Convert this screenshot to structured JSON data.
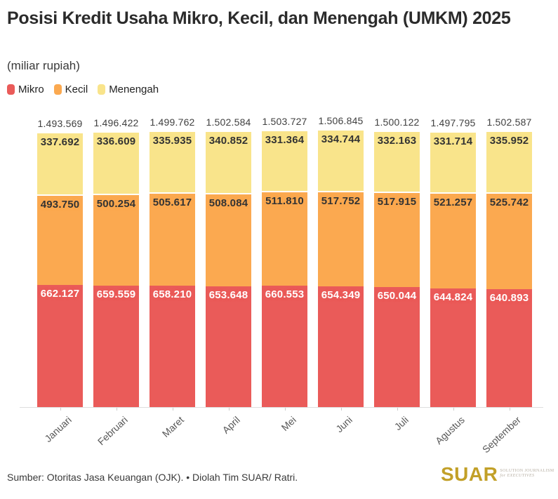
{
  "header": {
    "title": "Posisi Kredit Usaha Mikro, Kecil, dan Menengah (UMKM) 2025",
    "subtitle": "(miliar rupiah)"
  },
  "legend": {
    "items": [
      {
        "label": "Mikro",
        "color": "#ea5b59"
      },
      {
        "label": "Kecil",
        "color": "#fba950"
      },
      {
        "label": "Menengah",
        "color": "#f9e48b"
      }
    ]
  },
  "chart_data": {
    "type": "bar",
    "stacked": true,
    "title": "Posisi Kredit Usaha Mikro, Kecil, dan Menengah (UMKM) 2025",
    "unit": "miliar rupiah",
    "categories": [
      "Januari",
      "Februari",
      "Maret",
      "April",
      "Mei",
      "Juni",
      "Juli",
      "Agustus",
      "September"
    ],
    "series": [
      {
        "name": "Mikro",
        "color": "#ea5b59",
        "label_color": "#ffffff",
        "values": [
          662127,
          659559,
          658210,
          653648,
          660553,
          654349,
          650044,
          644824,
          640893
        ]
      },
      {
        "name": "Kecil",
        "color": "#fba950",
        "label_color": "#333333",
        "values": [
          493750,
          500254,
          505617,
          508084,
          511810,
          517752,
          517915,
          521257,
          525742
        ]
      },
      {
        "name": "Menengah",
        "color": "#f9e48b",
        "label_color": "#333333",
        "values": [
          337692,
          336609,
          335935,
          340852,
          331364,
          334744,
          332163,
          331714,
          335952
        ]
      }
    ],
    "totals": [
      1493569,
      1496422,
      1499762,
      1502584,
      1503727,
      1506845,
      1500122,
      1497795,
      1502587
    ],
    "xlabel": "",
    "ylabel": "",
    "ylim": [
      0,
      1550000
    ],
    "grid": false,
    "legend_position": "top",
    "number_format": "thousands-dot"
  },
  "footer": {
    "source": "Sumber: Otoritas Jasa Keuangan (OJK). • Diolah Tim SUAR/ Ratri.",
    "logo": {
      "text": "SUAR",
      "color": "#c2a028",
      "tagline_line1": "SOLUTION JOURNALISM",
      "tagline_line2": "for EXECUTIVES"
    }
  }
}
